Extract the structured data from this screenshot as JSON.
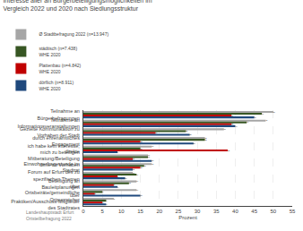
{
  "chart_data": {
    "type": "bar",
    "orientation": "horizontal",
    "title": "Interesse aller an Bürgerbeteiligungsmöglichkeiten im Vergleich 2022 und 2020 nach Siedlungsstruktur",
    "xlabel": "Prozent",
    "annotations": [
      "Landeshauptstadt Erfurt\nOrtsteilbefragung 2022"
    ],
    "categories": [
      "Teilnahme an Bürgerbefragungen",
      "Teilnahme an Informationsveranstaltungen",
      "Gezielte Kommunikation zu Vorhaben der Stadt",
      "durch ehrenamtliches Engagement",
      "ich habe kein Interesse, mich zu beteiligen",
      "direkte Mitberatung/Beteiligung dirne zu Vorhaben",
      "Einwohnerfragestunde im Stadtrat",
      "Forum auf Erfurt des zu spezifischen Themen",
      "Beteiligung an Bauleitplanungen",
      "über Ortsbeiräte/gemeindliche Ortsvorsteher",
      "über Praktiken/Ausschuss-Mitglieder des Stadtrates"
    ],
    "series": [
      {
        "name": "Ø Stadtbefragung 2022 (n=13.947)",
        "color": "#A6A6A6",
        "values": [
          50,
          48,
          37,
          32,
          18,
          17,
          18,
          13,
          14,
          14,
          8
        ]
      },
      {
        "name": "städtisch (n=7.438)\nWHE 2020",
        "color": "#375623",
        "values": [
          47,
          43,
          27,
          32,
          15,
          17,
          16,
          14,
          12,
          5,
          6
        ]
      },
      {
        "name": "Plattenbau (n=4.842)\nWHE 2020",
        "color": "#C00000",
        "values": [
          39,
          39,
          19,
          15,
          38,
          13,
          15,
          9,
          8,
          3,
          5
        ]
      },
      {
        "name": "dörflich (n=8.911)\nWHE 2020",
        "color": "#1F497D",
        "values": [
          45,
          40,
          28,
          29,
          9,
          18,
          13,
          11,
          9,
          15,
          6
        ]
      }
    ],
    "xlim": [
      0,
      55
    ],
    "xticks": [
      0,
      5,
      10,
      15,
      20,
      25,
      30,
      35,
      40,
      45,
      50,
      55
    ],
    "grid": true,
    "legend": "top",
    "data_labels": true
  }
}
